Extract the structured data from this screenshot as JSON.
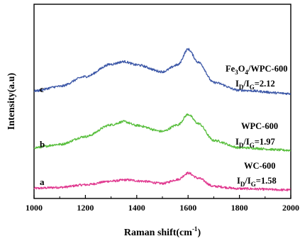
{
  "chart_data": {
    "type": "line",
    "xlabel": "Raman shift(cm",
    "xlabel_sup": "-1",
    "xlabel_end": ")",
    "ylabel": "Intensity(a.u)",
    "xlim": [
      1000,
      2000
    ],
    "x_ticks": [
      "1000",
      "1200",
      "1400",
      "1600",
      "1800",
      "2000"
    ],
    "grid": false,
    "legend": "none",
    "series": [
      {
        "letter": "a",
        "label_main": "WC-600",
        "ratio_label": {
          "i1": "I",
          "s1": "D",
          "slash": "/",
          "i2": "I",
          "s2": "G",
          "value": "=1.58"
        },
        "color": "#e0388f",
        "points": [
          [
            1000,
            0.05
          ],
          [
            1100,
            0.08
          ],
          [
            1200,
            0.16
          ],
          [
            1300,
            0.27
          ],
          [
            1360,
            0.31
          ],
          [
            1420,
            0.27
          ],
          [
            1500,
            0.2
          ],
          [
            1560,
            0.32
          ],
          [
            1600,
            0.52
          ],
          [
            1640,
            0.36
          ],
          [
            1700,
            0.11
          ],
          [
            1800,
            0.04
          ],
          [
            2000,
            0.0
          ]
        ]
      },
      {
        "letter": "b",
        "label_main": "WPC-600",
        "ratio_label": {
          "i1": "I",
          "s1": "D",
          "slash": "/",
          "i2": "I",
          "s2": "G",
          "value": "=1.97"
        },
        "color": "#5abf3f",
        "points": [
          [
            1000,
            0.08
          ],
          [
            1100,
            0.18
          ],
          [
            1200,
            0.42
          ],
          [
            1300,
            0.78
          ],
          [
            1350,
            0.88
          ],
          [
            1400,
            0.76
          ],
          [
            1500,
            0.58
          ],
          [
            1560,
            0.78
          ],
          [
            1600,
            1.1
          ],
          [
            1640,
            0.82
          ],
          [
            1700,
            0.3
          ],
          [
            1800,
            0.08
          ],
          [
            2000,
            0.0
          ]
        ]
      },
      {
        "letter": "c",
        "label_main_a": "Fe",
        "label_sub_a": "3",
        "label_main_b": "O",
        "label_sub_b": "4",
        "label_main_c": "/WPC-600",
        "ratio_label": {
          "i1": "I",
          "s1": "D",
          "slash": "/",
          "i2": "I",
          "s2": "G",
          "value": "=2.12"
        },
        "color": "#3e59a8",
        "points": [
          [
            1000,
            0.08
          ],
          [
            1100,
            0.22
          ],
          [
            1200,
            0.52
          ],
          [
            1300,
            0.9
          ],
          [
            1350,
            0.98
          ],
          [
            1400,
            0.88
          ],
          [
            1500,
            0.67
          ],
          [
            1560,
            0.88
          ],
          [
            1600,
            1.36
          ],
          [
            1640,
            0.96
          ],
          [
            1700,
            0.34
          ],
          [
            1800,
            0.1
          ],
          [
            2000,
            0.0
          ]
        ]
      }
    ]
  }
}
